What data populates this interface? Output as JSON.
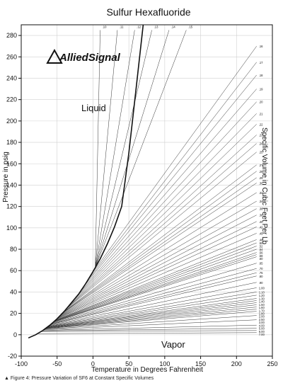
{
  "chart_data": {
    "type": "line",
    "title": "Sulfur Hexafluoride",
    "xlabel": "Temperature in Degrees Fahrenheit",
    "ylabel": "Pressure in psig",
    "right_label": "Specific Volume in Cubic Feet Per Lb",
    "xlim": [
      -100,
      250
    ],
    "ylim": [
      -20,
      290
    ],
    "x_ticks": [
      -100,
      -50,
      0,
      50,
      100,
      150,
      200,
      250
    ],
    "y_ticks": [
      -20,
      0,
      20,
      40,
      60,
      80,
      100,
      120,
      140,
      160,
      180,
      200,
      220,
      240,
      260,
      280
    ],
    "grid": true,
    "region_labels": [
      "Liquid",
      "Vapor"
    ],
    "brand": "AlliedSignal",
    "saturation_curve": {
      "name": "saturation",
      "x": [
        -90,
        -80,
        -70,
        -60,
        -50,
        -40,
        -30,
        -20,
        -10,
        0,
        10,
        20,
        30,
        40,
        50,
        60,
        70
      ],
      "y": [
        -3,
        0,
        4,
        9,
        15,
        22,
        30,
        38,
        48,
        59,
        71,
        85,
        101,
        120,
        170,
        230,
        290
      ]
    },
    "specific_volumes": [
      ".10",
      ".11",
      ".12",
      ".13",
      ".14",
      ".15",
      ".16",
      ".17",
      ".18",
      ".19",
      ".20",
      ".21",
      ".22",
      ".23",
      ".24",
      ".25",
      ".27",
      ".28",
      ".29",
      ".30",
      ".32",
      ".34",
      ".36",
      ".38",
      ".40",
      ".42",
      ".45",
      ".48",
      ".50",
      ".52",
      ".54",
      ".56",
      ".58",
      ".60",
      ".65",
      ".70",
      ".75",
      ".80",
      ".90",
      "1.00",
      "1.10",
      "1.20",
      "1.30",
      "1.40",
      "1.50",
      "1.60",
      "1.70",
      "1.80",
      "2.00",
      "2.50",
      "3.00",
      "4.00",
      "5.00",
      "6.00",
      "7.00"
    ],
    "isochore_end_pressure": [
      285,
      285,
      285,
      285,
      285,
      285,
      270,
      255,
      243,
      230,
      218,
      207,
      197,
      187,
      179,
      171,
      159,
      153,
      147,
      142,
      133,
      125,
      118,
      112,
      106,
      101,
      95,
      89,
      86,
      83,
      80,
      77,
      75,
      73,
      67,
      62,
      58,
      55,
      49,
      44,
      40,
      37,
      34,
      32,
      30,
      28,
      26,
      24,
      22,
      18,
      14,
      9,
      6,
      4,
      2
    ]
  },
  "caption": "▲ Figure 4:  Pressure Variation of SF6 at Constant Specific Volumes"
}
